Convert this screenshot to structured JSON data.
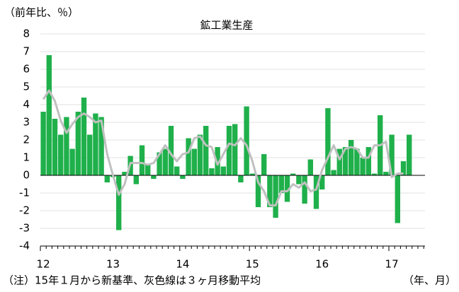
{
  "chart_data": {
    "type": "bar",
    "title": "鉱工業生産",
    "y_unit": "（前年比、％）",
    "x_unit": "（年、月）",
    "note": "（注）15年１月から新基準、灰色線は３ヶ月移動平均",
    "categories": [
      "12",
      null,
      null,
      null,
      null,
      null,
      null,
      null,
      null,
      null,
      null,
      null,
      "13",
      null,
      null,
      null,
      null,
      null,
      null,
      null,
      null,
      null,
      null,
      null,
      "14",
      null,
      null,
      null,
      null,
      null,
      null,
      null,
      null,
      null,
      null,
      null,
      "15",
      null,
      null,
      null,
      null,
      null,
      null,
      null,
      null,
      null,
      null,
      null,
      "16",
      null,
      null,
      null,
      null,
      null,
      null,
      null,
      null,
      null,
      null,
      null,
      "17",
      null,
      null,
      null
    ],
    "series": [
      {
        "type": "bar",
        "color": "#1fb04b",
        "values": [
          3.6,
          6.8,
          3.2,
          2.3,
          3.3,
          1.5,
          3.6,
          4.4,
          2.3,
          3.5,
          3.3,
          -0.4,
          -0.1,
          -3.1,
          0.2,
          1.1,
          -0.5,
          1.7,
          0.6,
          -0.2,
          1.3,
          1.5,
          2.8,
          0.5,
          -0.2,
          2.1,
          1.5,
          2.3,
          2.8,
          0.4,
          1.6,
          0.5,
          2.8,
          2.9,
          -0.4,
          3.9,
          0.1,
          -1.8,
          1.2,
          -1.8,
          -2.4,
          -1.0,
          -1.5,
          0.1,
          -0.5,
          -1.6,
          0.9,
          -1.9,
          -0.8,
          3.8,
          0.3,
          1.5,
          1.6,
          2.0,
          1.5,
          1.0,
          1.6,
          0.1,
          3.4,
          0.2,
          2.3,
          -2.7,
          0.8,
          2.3
        ]
      },
      {
        "type": "line",
        "color": "#c0c0c0",
        "values": [
          4.3,
          4.8,
          4.2,
          3.1,
          2.4,
          2.9,
          3.3,
          3.5,
          3.3,
          3.0,
          3.1,
          1.2,
          0.0,
          -1.1,
          -0.5,
          0.7,
          0.7,
          0.7,
          0.6,
          0.7,
          1.2,
          1.7,
          1.2,
          0.8,
          1.2,
          1.3,
          2.1,
          2.2,
          1.7,
          1.6,
          0.6,
          1.2,
          1.8,
          1.7,
          2.1,
          1.7,
          0.8,
          -0.4,
          -0.9,
          -1.7,
          -1.7,
          -0.9,
          -0.9,
          -0.5,
          -0.7,
          -0.4,
          -0.9,
          -0.8,
          0.3,
          1.0,
          1.7,
          0.9,
          1.5,
          1.6,
          1.5,
          1.0,
          1.0,
          1.7,
          1.7,
          1.9,
          -0.1,
          0.1,
          0.1,
          null
        ]
      }
    ],
    "ylim": [
      -4,
      8
    ],
    "yticks": [
      -4,
      -3,
      -2,
      -1,
      0,
      1,
      2,
      3,
      4,
      5,
      6,
      7,
      8
    ],
    "grid": true
  }
}
